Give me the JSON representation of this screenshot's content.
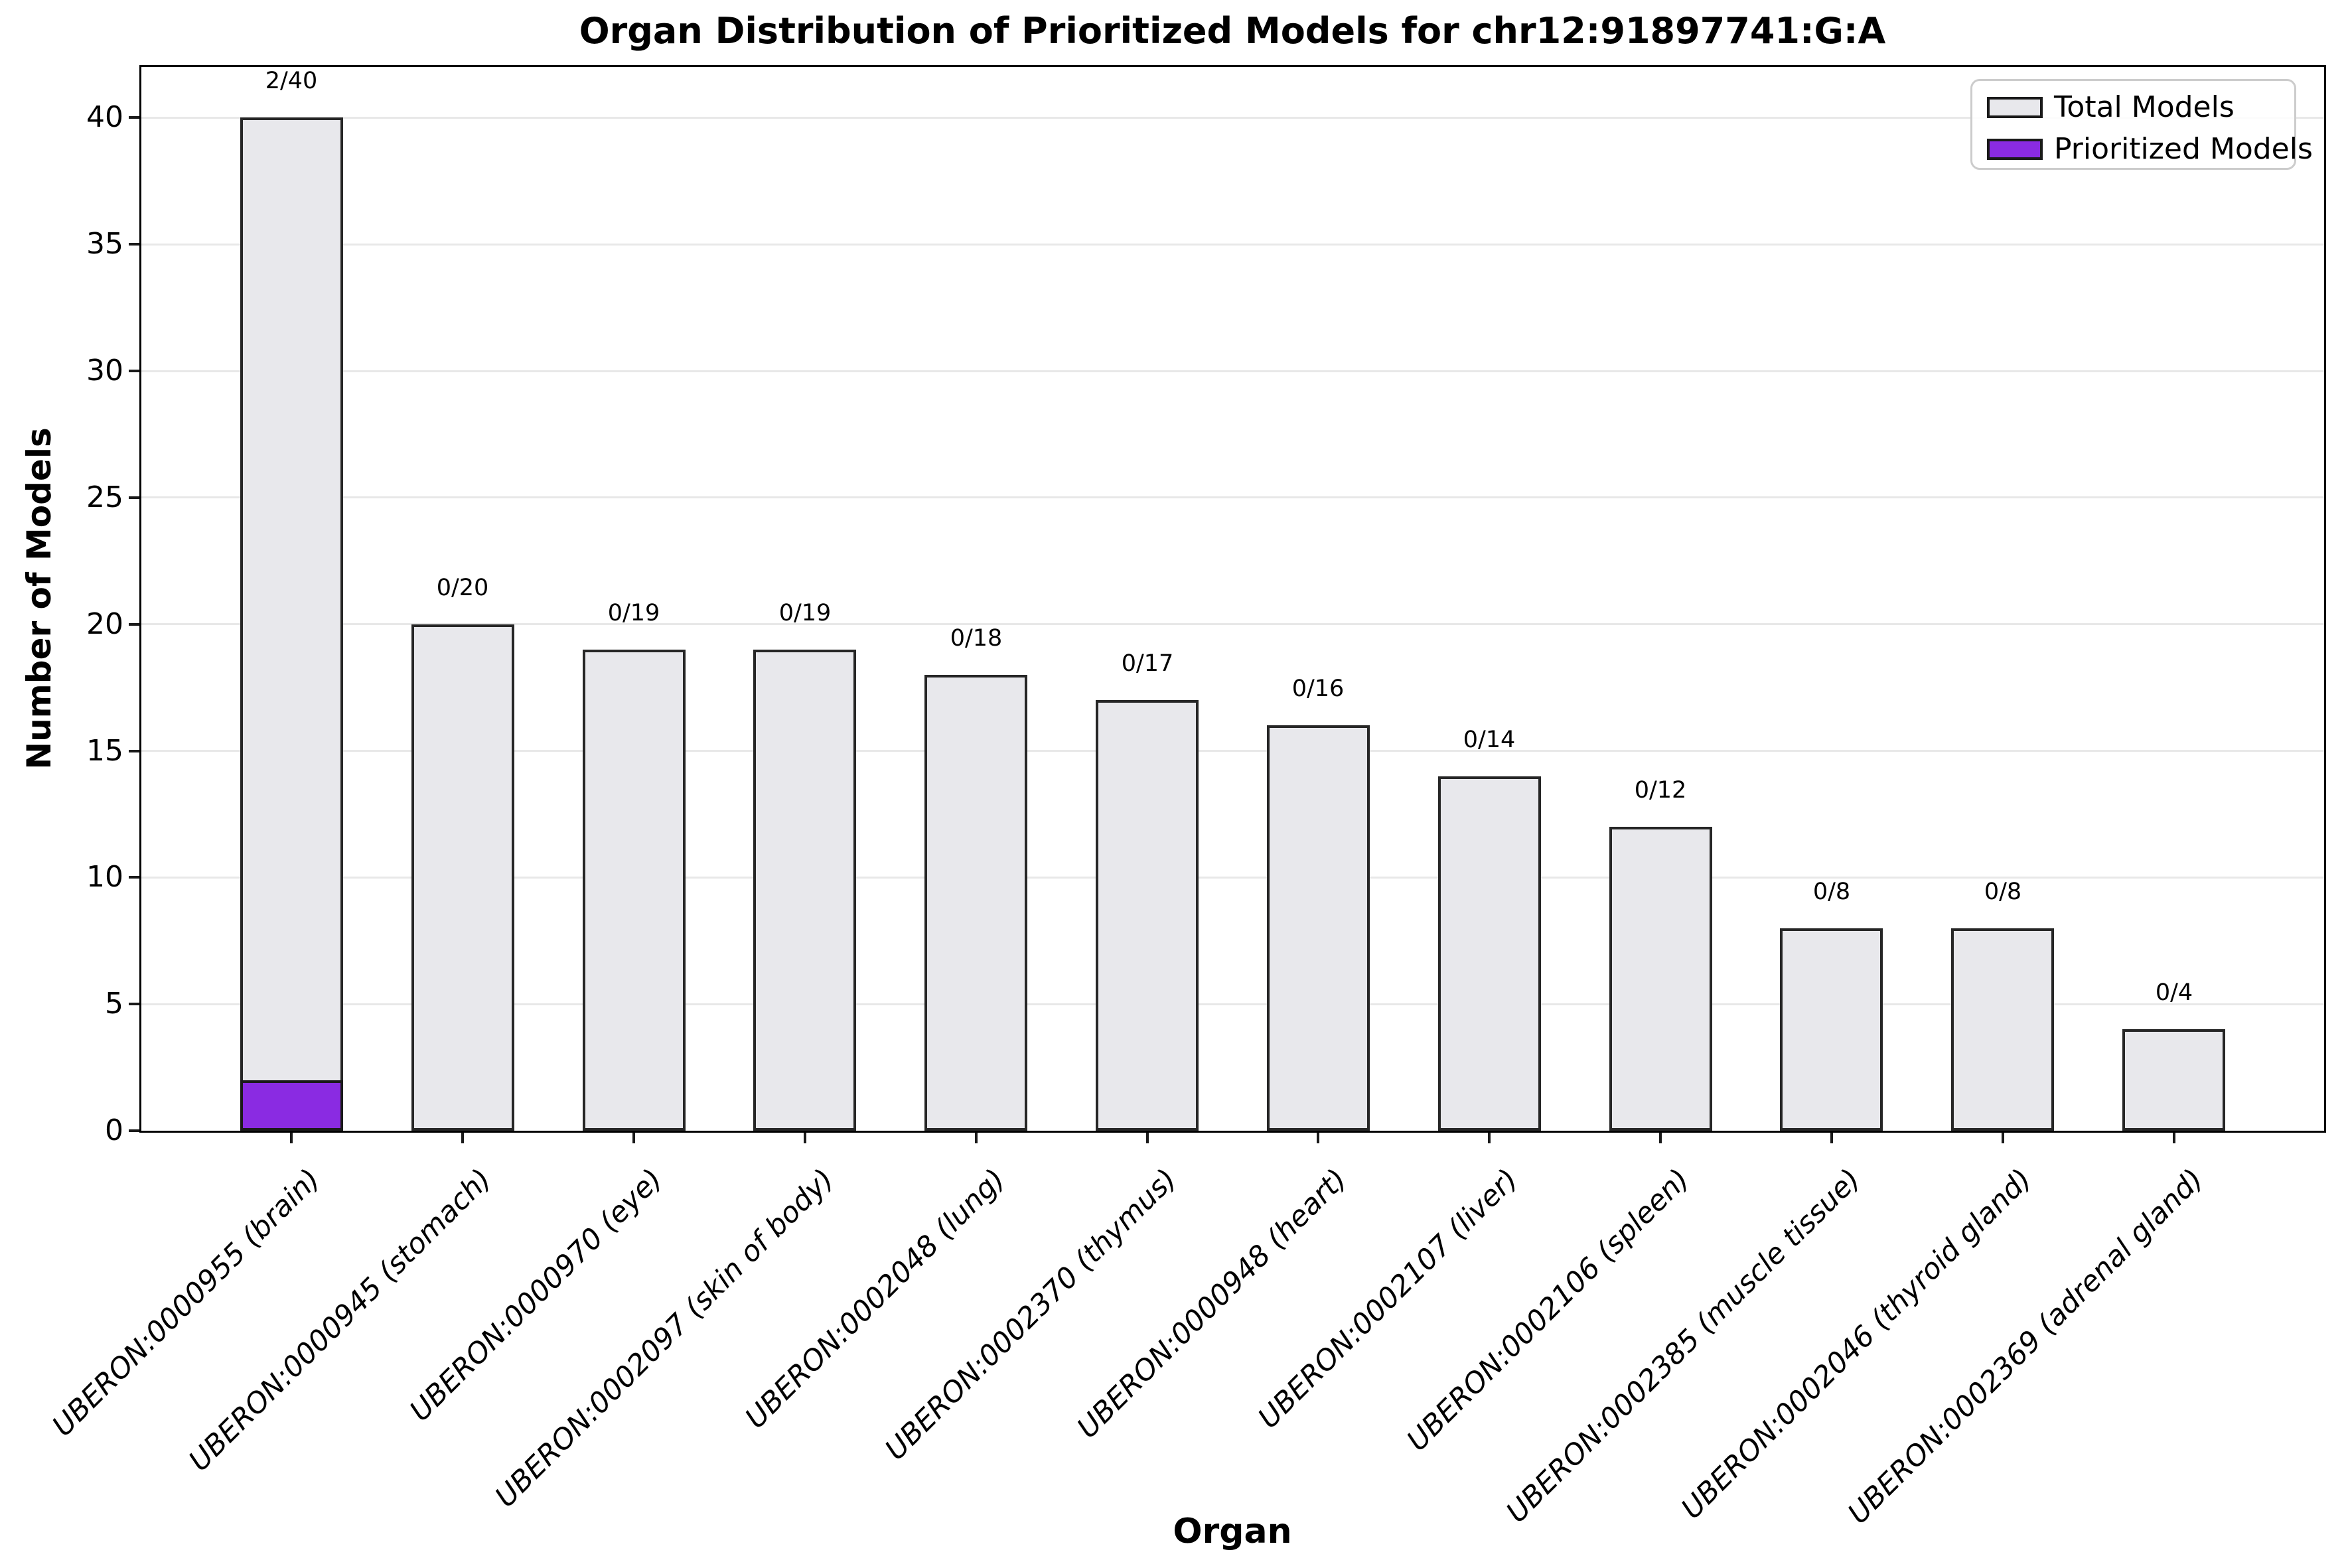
{
  "figure": {
    "title": "Organ Distribution of Prioritized Models for chr12:91897741:G:A",
    "xlabel": "Organ",
    "ylabel": "Number of Models"
  },
  "legend": {
    "items": [
      {
        "label": "Total Models",
        "color": "#e8e8ec"
      },
      {
        "label": "Prioritized Models",
        "color": "#8a2be2"
      }
    ]
  },
  "chart_data": {
    "type": "bar",
    "title": "Organ Distribution of Prioritized Models for chr12:91897741:G:A",
    "xlabel": "Organ",
    "ylabel": "Number of Models",
    "ylim": [
      0,
      42
    ],
    "yticks": [
      0,
      5,
      10,
      15,
      20,
      25,
      30,
      35,
      40
    ],
    "grid": true,
    "legend_position": "upper right",
    "categories": [
      "UBERON:0000955 (brain)",
      "UBERON:0000945 (stomach)",
      "UBERON:0000970 (eye)",
      "UBERON:0002097 (skin of body)",
      "UBERON:0002048 (lung)",
      "UBERON:0002370 (thymus)",
      "UBERON:0000948 (heart)",
      "UBERON:0002107 (liver)",
      "UBERON:0002106 (spleen)",
      "UBERON:0002385 (muscle tissue)",
      "UBERON:0002046 (thyroid gland)",
      "UBERON:0002369 (adrenal gland)"
    ],
    "series": [
      {
        "name": "Total Models",
        "color": "#e8e8ec",
        "edge_color": "#262626",
        "values": [
          40,
          20,
          19,
          19,
          18,
          17,
          16,
          14,
          12,
          8,
          8,
          4
        ]
      },
      {
        "name": "Prioritized Models",
        "color": "#8a2be2",
        "edge_color": "#1a1a1a",
        "values": [
          2,
          0,
          0,
          0,
          0,
          0,
          0,
          0,
          0,
          0,
          0,
          0
        ]
      }
    ],
    "bar_labels": [
      "2/40",
      "0/20",
      "0/19",
      "0/19",
      "0/18",
      "0/17",
      "0/16",
      "0/14",
      "0/12",
      "0/8",
      "0/8",
      "0/4"
    ]
  }
}
